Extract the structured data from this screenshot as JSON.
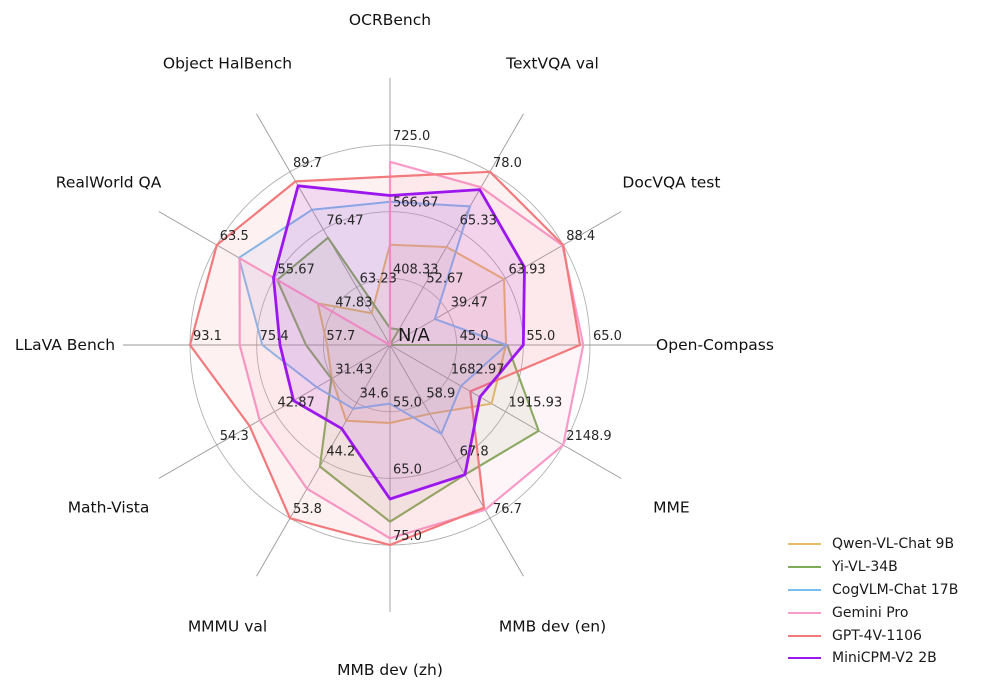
{
  "chart_data": {
    "type": "radar",
    "center_label": "N/A",
    "grid": true,
    "legend_position": "bottom-right",
    "axes": [
      {
        "label": "OCRBench",
        "min": 250,
        "max": 725,
        "ticks": [
          "408.33",
          "566.67",
          "725.0"
        ]
      },
      {
        "label": "TextVQA val",
        "min": 40,
        "max": 78,
        "ticks": [
          "52.67",
          "65.33",
          "78.0"
        ]
      },
      {
        "label": "DocVQA test",
        "min": 15,
        "max": 88.4,
        "ticks": [
          "39.47",
          "63.93",
          "88.4"
        ]
      },
      {
        "label": "Open-Compass",
        "min": 35,
        "max": 65,
        "ticks": [
          "45.0",
          "55.0",
          "65.0"
        ]
      },
      {
        "label": "MME",
        "min": 1450,
        "max": 2148.9,
        "ticks": [
          "1682.97",
          "1915.93",
          "2148.9"
        ]
      },
      {
        "label": "MMB dev (en)",
        "min": 50,
        "max": 76.7,
        "ticks": [
          "58.9",
          "67.8",
          "76.7"
        ]
      },
      {
        "label": "MMB dev (zh)",
        "min": 45,
        "max": 75,
        "ticks": [
          "55.0",
          "65.0",
          "75.0"
        ]
      },
      {
        "label": "MMMU val",
        "min": 25,
        "max": 53.8,
        "ticks": [
          "34.6",
          "44.2",
          "53.8"
        ]
      },
      {
        "label": "Math-Vista",
        "min": 20,
        "max": 54.3,
        "ticks": [
          "31.43",
          "42.87",
          "54.3"
        ]
      },
      {
        "label": "LLaVA Bench",
        "min": 40,
        "max": 93.1,
        "ticks": [
          "57.7",
          "75.4",
          "93.1"
        ]
      },
      {
        "label": "RealWorld QA",
        "min": 40,
        "max": 63.5,
        "ticks": [
          "47.83",
          "55.67",
          "63.5"
        ]
      },
      {
        "label": "Object HalBench",
        "min": 50,
        "max": 89.7,
        "ticks": [
          "63.23",
          "76.47",
          "89.7"
        ]
      }
    ],
    "series": [
      {
        "name": "Qwen-VL-Chat 9B",
        "color": "#e9bc67",
        "values": [
          488,
          61.5,
          63.3,
          52.4,
          1860,
          60.6,
          56.7,
          37.6,
          31.5,
          56.7,
          49.8,
          57.3
        ]
      },
      {
        "name": "Yi-VL-34B",
        "color": "#7fab58",
        "values": [
          290,
          43.4,
          null,
          52.6,
          2050,
          70.0,
          71.5,
          45.2,
          31.6,
          62.3,
          55.3,
          74.6
        ]
      },
      {
        "name": "CogVLM-Chat 17B",
        "color": "#7cbdf0",
        "values": [
          590,
          70.4,
          34.0,
          52.5,
          1736.6,
          63.7,
          53.8,
          35.6,
          34.5,
          73.9,
          60.5,
          81.0
        ]
      },
      {
        "name": "Gemini Pro",
        "color": "#f89bc9",
        "values": [
          685,
          74.6,
          88.1,
          64.0,
          2148.9,
          75.4,
          74.0,
          48.9,
          45.8,
          79.9,
          60.4,
          null
        ]
      },
      {
        "name": "GPT-4V-1106",
        "color": "#f27a7d",
        "values": [
          650,
          78.0,
          88.4,
          63.5,
          1774,
          75.1,
          75.0,
          53.8,
          47.8,
          93.1,
          63.5,
          87.5
        ]
      },
      {
        "name": "MiniCPM-V2 2B",
        "color": "#9c17ed",
        "values": [
          605,
          74.1,
          72.0,
          55.0,
          1813,
          70.0,
          68.1,
          38.9,
          39.1,
          69.2,
          55.8,
          86.5
        ]
      }
    ]
  }
}
